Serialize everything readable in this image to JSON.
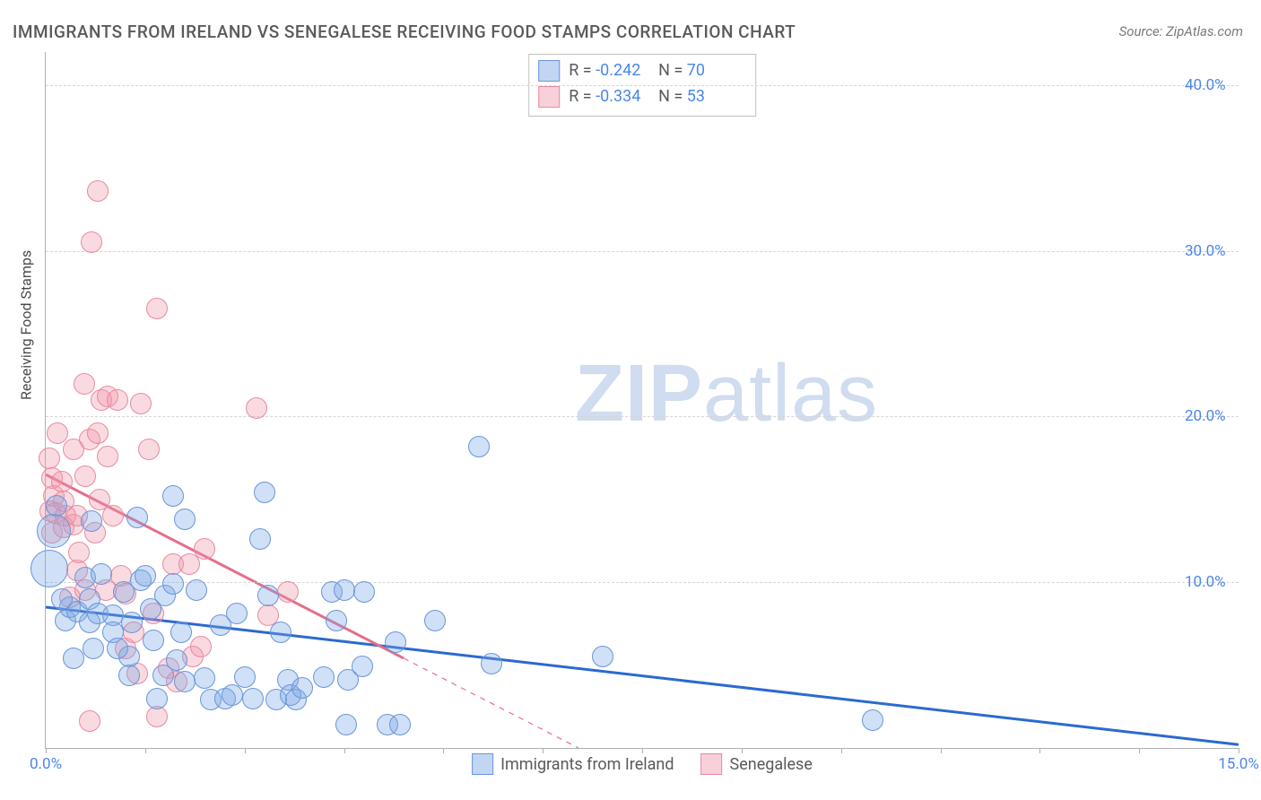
{
  "title": "IMMIGRANTS FROM IRELAND VS SENEGALESE RECEIVING FOOD STAMPS CORRELATION CHART",
  "source_label": "Source: ",
  "source_name": "ZipAtlas.com",
  "ylabel": "Receiving Food Stamps",
  "watermark_left": "ZIP",
  "watermark_right": "atlas",
  "chart": {
    "type": "scatter",
    "xlim": [
      0,
      15
    ],
    "ylim": [
      0,
      42
    ],
    "yticks": [
      10,
      20,
      30,
      40
    ],
    "ytick_labels": [
      "10.0%",
      "20.0%",
      "30.0%",
      "40.0%"
    ],
    "xtick_labels_shown": {
      "0": "0.0%",
      "15": "15.0%"
    },
    "xtick_marks": [
      0,
      1.25,
      2.5,
      3.75,
      5.0,
      6.25,
      7.5,
      8.75,
      10.0,
      11.25,
      12.5,
      13.75,
      15.0
    ],
    "background_color": "#ffffff",
    "grid_color": "#d5d5d5",
    "axis_color": "#b0b0b0",
    "tick_label_color": "#4a86e8",
    "ylabel_color": "#4a4a4a",
    "title_color": "#5a5a5a",
    "title_fontsize": 19,
    "tick_fontsize": 17,
    "marker_radius": 11,
    "series": [
      {
        "name": "Immigrants from Ireland",
        "color_fill": "rgba(120,165,230,0.35)",
        "color_stroke": "#6a95d8",
        "R_label": "R = ",
        "R": "-0.242",
        "N_label": "N = ",
        "N": "70",
        "trend": {
          "x1": 0,
          "y1": 8.5,
          "x2": 15,
          "y2": 0.2,
          "stroke": "#2a6ad0",
          "width": 3,
          "dash_after_x": null
        },
        "points": [
          [
            0.1,
            13.1,
            18
          ],
          [
            0.05,
            10.8,
            20
          ],
          [
            0.14,
            14.6,
            11
          ],
          [
            0.25,
            7.7,
            11
          ],
          [
            0.3,
            8.5,
            11
          ],
          [
            0.2,
            9.0,
            11
          ],
          [
            0.4,
            8.2,
            11
          ],
          [
            0.55,
            9.0,
            11
          ],
          [
            0.55,
            7.6,
            11
          ],
          [
            0.5,
            10.3,
            11
          ],
          [
            0.58,
            13.7,
            11
          ],
          [
            0.65,
            8.1,
            11
          ],
          [
            0.7,
            10.5,
            11
          ],
          [
            0.85,
            8.0,
            11
          ],
          [
            0.85,
            7.0,
            11
          ],
          [
            0.98,
            9.4,
            11
          ],
          [
            1.05,
            5.5,
            11
          ],
          [
            1.05,
            4.4,
            11
          ],
          [
            1.08,
            7.6,
            11
          ],
          [
            1.15,
            13.9,
            11
          ],
          [
            1.2,
            10.1,
            11
          ],
          [
            1.25,
            10.4,
            11
          ],
          [
            1.32,
            8.4,
            11
          ],
          [
            1.35,
            6.5,
            11
          ],
          [
            1.4,
            3.0,
            11
          ],
          [
            1.5,
            9.2,
            11
          ],
          [
            1.48,
            4.4,
            11
          ],
          [
            1.6,
            15.2,
            11
          ],
          [
            1.6,
            9.9,
            11
          ],
          [
            1.65,
            5.3,
            11
          ],
          [
            1.75,
            13.8,
            11
          ],
          [
            1.75,
            4.0,
            11
          ],
          [
            1.9,
            9.5,
            11
          ],
          [
            2.0,
            4.2,
            11
          ],
          [
            2.08,
            2.9,
            11
          ],
          [
            2.2,
            7.4,
            11
          ],
          [
            2.25,
            3.0,
            11
          ],
          [
            2.35,
            3.2,
            11
          ],
          [
            2.4,
            8.1,
            11
          ],
          [
            2.5,
            4.3,
            11
          ],
          [
            2.6,
            3.0,
            11
          ],
          [
            2.7,
            12.6,
            11
          ],
          [
            2.75,
            15.4,
            11
          ],
          [
            2.8,
            9.2,
            11
          ],
          [
            2.9,
            2.9,
            11
          ],
          [
            2.95,
            7.0,
            11
          ],
          [
            3.05,
            4.1,
            11
          ],
          [
            3.08,
            3.2,
            11
          ],
          [
            3.15,
            2.9,
            11
          ],
          [
            3.22,
            3.6,
            11
          ],
          [
            3.5,
            4.3,
            11
          ],
          [
            3.6,
            9.4,
            11
          ],
          [
            3.65,
            7.7,
            11
          ],
          [
            3.75,
            9.5,
            11
          ],
          [
            3.78,
            1.4,
            11
          ],
          [
            3.8,
            4.1,
            11
          ],
          [
            3.98,
            4.9,
            11
          ],
          [
            4.0,
            9.4,
            11
          ],
          [
            4.3,
            1.4,
            11
          ],
          [
            4.4,
            6.4,
            11
          ],
          [
            4.45,
            1.4,
            11
          ],
          [
            4.9,
            7.7,
            11
          ],
          [
            5.45,
            18.2,
            11
          ],
          [
            5.6,
            5.1,
            11
          ],
          [
            7.0,
            5.5,
            11
          ],
          [
            10.4,
            1.7,
            11
          ],
          [
            0.6,
            6.0,
            11
          ],
          [
            0.35,
            5.4,
            11
          ],
          [
            0.9,
            6.0,
            11
          ],
          [
            1.7,
            7.0,
            11
          ]
        ]
      },
      {
        "name": "Senegalese",
        "color_fill": "rgba(240,150,170,0.35)",
        "color_stroke": "#e88aa0",
        "R_label": "R = ",
        "R": "-0.334",
        "N_label": "N = ",
        "N": "53",
        "trend": {
          "x1": 0,
          "y1": 16.5,
          "x2": 6.7,
          "y2": 0,
          "stroke": "#e56e8a",
          "width": 3,
          "dash_after_x": 4.5
        },
        "points": [
          [
            0.08,
            16.3,
            11
          ],
          [
            0.1,
            15.2,
            11
          ],
          [
            0.06,
            14.3,
            11
          ],
          [
            0.12,
            14.2,
            11
          ],
          [
            0.05,
            17.5,
            11
          ],
          [
            0.15,
            19.0,
            11
          ],
          [
            0.08,
            13.0,
            11
          ],
          [
            0.2,
            16.1,
            11
          ],
          [
            0.22,
            13.3,
            11
          ],
          [
            0.22,
            14.9,
            11
          ],
          [
            0.25,
            14.0,
            11
          ],
          [
            0.3,
            9.1,
            11
          ],
          [
            0.35,
            13.5,
            11
          ],
          [
            0.35,
            18.0,
            11
          ],
          [
            0.4,
            14.0,
            11
          ],
          [
            0.4,
            10.7,
            11
          ],
          [
            0.42,
            11.8,
            11
          ],
          [
            0.48,
            22.0,
            11
          ],
          [
            0.5,
            9.5,
            11
          ],
          [
            0.5,
            16.4,
            11
          ],
          [
            0.55,
            18.6,
            11
          ],
          [
            0.58,
            30.5,
            11
          ],
          [
            0.62,
            13.0,
            11
          ],
          [
            0.65,
            19.0,
            11
          ],
          [
            0.65,
            33.6,
            11
          ],
          [
            0.68,
            15.0,
            11
          ],
          [
            0.7,
            21.0,
            11
          ],
          [
            0.75,
            9.5,
            11
          ],
          [
            0.78,
            17.6,
            11
          ],
          [
            0.78,
            21.2,
            11
          ],
          [
            0.85,
            14.0,
            11
          ],
          [
            0.9,
            21.0,
            11
          ],
          [
            0.95,
            10.4,
            11
          ],
          [
            1.0,
            9.3,
            11
          ],
          [
            1.0,
            6.0,
            11
          ],
          [
            1.1,
            7.0,
            11
          ],
          [
            1.15,
            4.5,
            11
          ],
          [
            1.2,
            20.8,
            11
          ],
          [
            1.3,
            18.0,
            11
          ],
          [
            1.35,
            8.1,
            11
          ],
          [
            1.4,
            26.5,
            11
          ],
          [
            1.55,
            4.8,
            11
          ],
          [
            1.6,
            11.1,
            11
          ],
          [
            1.65,
            4.0,
            11
          ],
          [
            1.8,
            11.1,
            11
          ],
          [
            1.85,
            5.5,
            11
          ],
          [
            1.95,
            6.1,
            11
          ],
          [
            2.0,
            12.0,
            11
          ],
          [
            2.65,
            20.5,
            11
          ],
          [
            2.8,
            8.0,
            11
          ],
          [
            3.05,
            9.4,
            11
          ],
          [
            0.55,
            1.6,
            11
          ],
          [
            1.4,
            1.9,
            11
          ]
        ]
      }
    ]
  },
  "bottom_legend": [
    {
      "swatch": "blue",
      "label": "Immigrants from Ireland"
    },
    {
      "swatch": "pink",
      "label": "Senegalese"
    }
  ]
}
